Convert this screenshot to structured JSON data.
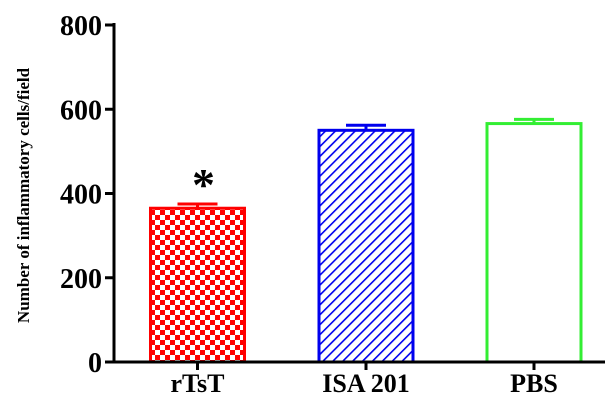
{
  "chart_data": {
    "type": "bar",
    "categories": [
      "rTsT",
      "ISA 201",
      "PBS"
    ],
    "values": [
      365,
      550,
      566
    ],
    "errors": [
      10,
      12,
      10
    ],
    "colors": [
      "#ff0000",
      "#0000ee",
      "#33ee33"
    ],
    "patterns": [
      "checker",
      "diagonal-hatch",
      "none"
    ],
    "ylabel": "Number of inflammatory cells/field",
    "xlabel": "",
    "ylim": [
      0,
      800
    ],
    "yticks": [
      0,
      200,
      400,
      600,
      800
    ],
    "annotations": [
      {
        "category": "rTsT",
        "text": "*"
      }
    ],
    "grid": false,
    "legend": "none"
  }
}
